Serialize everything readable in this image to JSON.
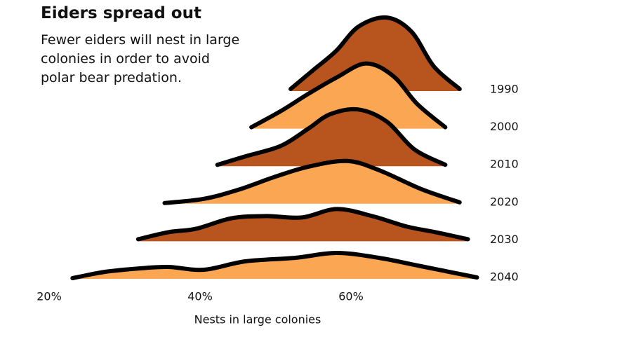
{
  "chart_data": {
    "type": "ridgeline",
    "title": "Eiders spread out",
    "subtitle": "Fewer eiders will nest in large colonies in order to avoid polar bear predation.",
    "x_label": "Nests in large colonies",
    "xlim": [
      20,
      78
    ],
    "xticks": [
      {
        "value": 20,
        "label": "20%"
      },
      {
        "value": 40,
        "label": "40%"
      },
      {
        "value": 60,
        "label": "60%"
      }
    ],
    "ylim": [
      0,
      1
    ],
    "series": [
      {
        "name": "1990",
        "color": "#b8551f",
        "x": [
          52,
          55,
          58,
          61,
          64.7,
          68,
          71,
          74.4
        ],
        "values": [
          0.03,
          0.3,
          0.57,
          0.92,
          1.05,
          0.85,
          0.35,
          0.03
        ]
      },
      {
        "name": "2000",
        "color": "#fba653",
        "x": [
          46.8,
          50.7,
          54.4,
          58.1,
          62.0,
          65.6,
          68.8,
          72.5
        ],
        "values": [
          0.02,
          0.25,
          0.5,
          0.73,
          0.93,
          0.75,
          0.35,
          0.02
        ]
      },
      {
        "name": "2010",
        "color": "#b8551f",
        "x": [
          42.3,
          46.0,
          50.7,
          54.4,
          57.2,
          60.9,
          64.7,
          68.4,
          72.5
        ],
        "values": [
          0.02,
          0.14,
          0.29,
          0.54,
          0.74,
          0.81,
          0.64,
          0.24,
          0.02
        ]
      },
      {
        "name": "2020",
        "color": "#fba653",
        "x": [
          35.3,
          40.5,
          45.1,
          49.8,
          54.4,
          59.5,
          63.7,
          69.3,
          74.4
        ],
        "values": [
          0.01,
          0.07,
          0.2,
          0.38,
          0.53,
          0.61,
          0.48,
          0.21,
          0.02
        ]
      },
      {
        "name": "2030",
        "color": "#b8551f",
        "x": [
          31.8,
          35.8,
          39.5,
          44.2,
          48.8,
          53.5,
          58.1,
          62.8,
          67.4,
          71.2,
          75.5
        ],
        "values": [
          0.03,
          0.13,
          0.18,
          0.33,
          0.36,
          0.34,
          0.46,
          0.36,
          0.21,
          0.13,
          0.03
        ]
      },
      {
        "name": "2040",
        "color": "#fba653",
        "x": [
          23.1,
          27.4,
          32.1,
          35.8,
          40.5,
          46.0,
          52.6,
          58.1,
          63.7,
          69.3,
          76.7
        ],
        "values": [
          0.01,
          0.1,
          0.15,
          0.17,
          0.13,
          0.25,
          0.3,
          0.37,
          0.3,
          0.18,
          0.02
        ]
      }
    ]
  }
}
